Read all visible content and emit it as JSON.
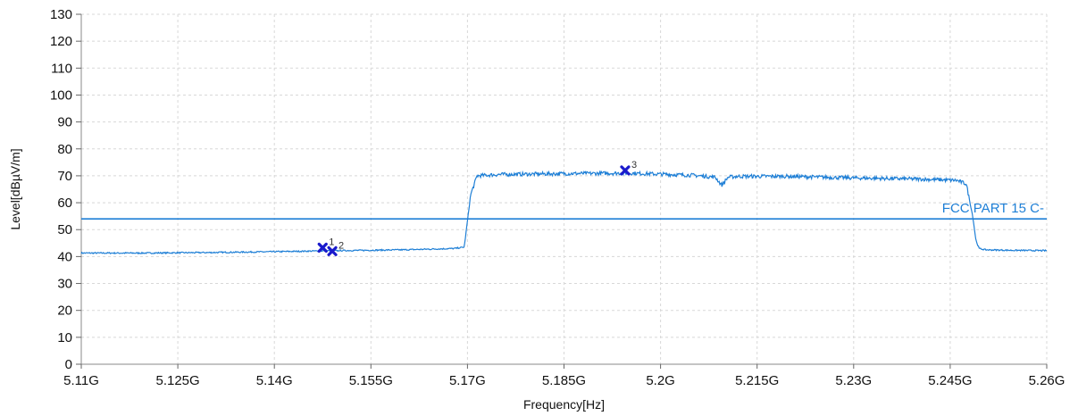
{
  "chart_data": {
    "type": "line",
    "xlabel": "Frequency[Hz]",
    "ylabel": "Level[dBµV/m]",
    "xlim": [
      5.11,
      5.26
    ],
    "ylim": [
      0,
      130
    ],
    "x_ticks": [
      5.11,
      5.125,
      5.14,
      5.155,
      5.17,
      5.185,
      5.2,
      5.215,
      5.23,
      5.245,
      5.26
    ],
    "x_tick_labels": [
      "5.11G",
      "5.125G",
      "5.14G",
      "5.155G",
      "5.17G",
      "5.185G",
      "5.2G",
      "5.215G",
      "5.23G",
      "5.245G",
      "5.26G"
    ],
    "y_ticks": [
      0,
      10,
      20,
      30,
      40,
      50,
      60,
      70,
      80,
      90,
      100,
      110,
      120,
      130
    ],
    "grid": true,
    "colors": {
      "trace": "#1e7fd6",
      "limit": "#1e7fd6",
      "marker": "#1a1acc",
      "grid": "#d8d8d8"
    },
    "series": [
      {
        "x": [
          5.11,
          5.12,
          5.13,
          5.14,
          5.15,
          5.16,
          5.168,
          5.1695,
          5.1705,
          5.1715,
          5.175,
          5.185,
          5.195,
          5.2,
          5.205,
          5.2085,
          5.2095,
          5.2105,
          5.212,
          5.22,
          5.23,
          5.24,
          5.246,
          5.2475,
          5.2485,
          5.249,
          5.2495,
          5.2505,
          5.255,
          5.26
        ],
        "y": [
          41.3,
          41.3,
          41.5,
          41.8,
          42.2,
          42.5,
          43.0,
          43.5,
          63.0,
          70.0,
          70.5,
          70.8,
          71.0,
          70.6,
          70.2,
          69.5,
          66.5,
          69.5,
          69.8,
          69.8,
          69.2,
          68.8,
          68.3,
          67.0,
          55.0,
          46.0,
          43.0,
          42.5,
          42.3,
          42.2
        ]
      }
    ],
    "limit_lines": [
      {
        "label": "FCC PART 15 C-",
        "y": 54
      }
    ],
    "markers": [
      {
        "label": "1",
        "x": 5.1475,
        "y": 43.3
      },
      {
        "label": "2",
        "x": 5.149,
        "y": 42.0
      },
      {
        "label": "3",
        "x": 5.1945,
        "y": 72.0
      }
    ]
  }
}
